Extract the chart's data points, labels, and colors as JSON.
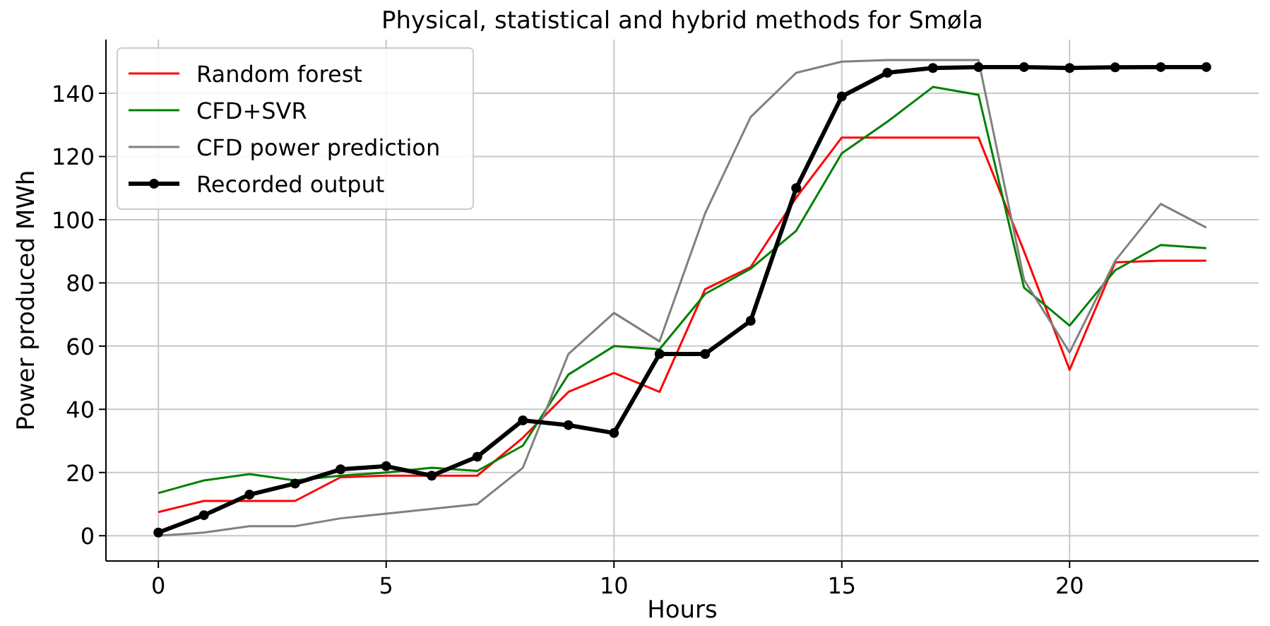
{
  "chart_data": {
    "type": "line",
    "title": "Physical, statistical and hybrid methods for Smøla",
    "xlabel": "Hours",
    "ylabel": "Power produced MWh",
    "x": [
      0,
      1,
      2,
      3,
      4,
      5,
      6,
      7,
      8,
      9,
      10,
      11,
      12,
      13,
      14,
      15,
      16,
      17,
      18,
      19,
      20,
      21,
      22,
      23
    ],
    "series": [
      {
        "name": "Random forest",
        "color": "#ff0000",
        "values": [
          7.5,
          11,
          11,
          11,
          18.5,
          19,
          19,
          19,
          31,
          45.5,
          51.5,
          45.5,
          78,
          85,
          107,
          126,
          126,
          126,
          126,
          90,
          52.5,
          86.5,
          87,
          87
        ]
      },
      {
        "name": "CFD+SVR",
        "color": "#008000",
        "values": [
          13.5,
          17.5,
          19.5,
          17.5,
          19,
          20,
          21.5,
          20.5,
          28.5,
          51,
          60,
          59,
          76.5,
          84.5,
          96.5,
          121,
          131,
          142,
          139.5,
          78.5,
          66.5,
          84,
          92,
          91
        ]
      },
      {
        "name": "CFD power prediction",
        "color": "#808080",
        "values": [
          0,
          1,
          3,
          3,
          5.5,
          7,
          8.5,
          10,
          21.5,
          57.5,
          70.5,
          61.5,
          102,
          132.5,
          146.5,
          150,
          150.5,
          150.5,
          150.5,
          81,
          58,
          87,
          105,
          97.5
        ]
      },
      {
        "name": "Recorded output",
        "color": "#000000",
        "marker": "circle",
        "values": [
          1,
          6.5,
          13,
          16.5,
          21,
          22,
          19,
          25,
          36.5,
          35,
          32.5,
          57.5,
          57.5,
          68,
          110,
          139,
          146.5,
          148,
          148.3,
          148.3,
          148,
          148.2,
          148.3,
          148.3
        ]
      }
    ],
    "xlim": [
      -1.15,
      24.15
    ],
    "ylim": [
      -8,
      157
    ],
    "xticks": [
      0,
      5,
      10,
      15,
      20
    ],
    "yticks": [
      0,
      20,
      40,
      60,
      80,
      100,
      120,
      140
    ],
    "grid": true,
    "legend": "top left",
    "line_style": "solid"
  }
}
